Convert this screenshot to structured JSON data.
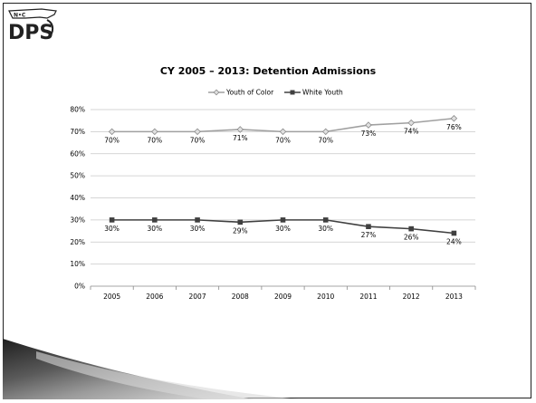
{
  "logo": {
    "small_text": "N•C",
    "big_text": "DPS"
  },
  "chart_data": {
    "type": "line",
    "title": "CY 2005 – 2013: Detention Admissions",
    "xlabel": "",
    "ylabel": "",
    "categories": [
      "2005",
      "2006",
      "2007",
      "2008",
      "2009",
      "2010",
      "2011",
      "2012",
      "2013"
    ],
    "ylim": [
      0,
      80
    ],
    "yticks": [
      0,
      10,
      20,
      30,
      40,
      50,
      60,
      70,
      80
    ],
    "ytick_labels": [
      "0%",
      "10%",
      "20%",
      "30%",
      "40%",
      "50%",
      "60%",
      "70%",
      "80%"
    ],
    "grid": true,
    "legend_position": "top-center",
    "series": [
      {
        "name": "Youth of Color",
        "marker": "diamond",
        "color": "#a0a0a0",
        "values": [
          70,
          70,
          70,
          71,
          70,
          70,
          73,
          74,
          76
        ],
        "labels": [
          "70%",
          "70%",
          "70%",
          "71%",
          "70%",
          "70%",
          "73%",
          "74%",
          "76%"
        ]
      },
      {
        "name": "White Youth",
        "marker": "square",
        "color": "#404040",
        "values": [
          30,
          30,
          30,
          29,
          30,
          30,
          27,
          26,
          24
        ],
        "labels": [
          "30%",
          "30%",
          "30%",
          "29%",
          "30%",
          "30%",
          "27%",
          "26%",
          "24%"
        ]
      }
    ]
  }
}
